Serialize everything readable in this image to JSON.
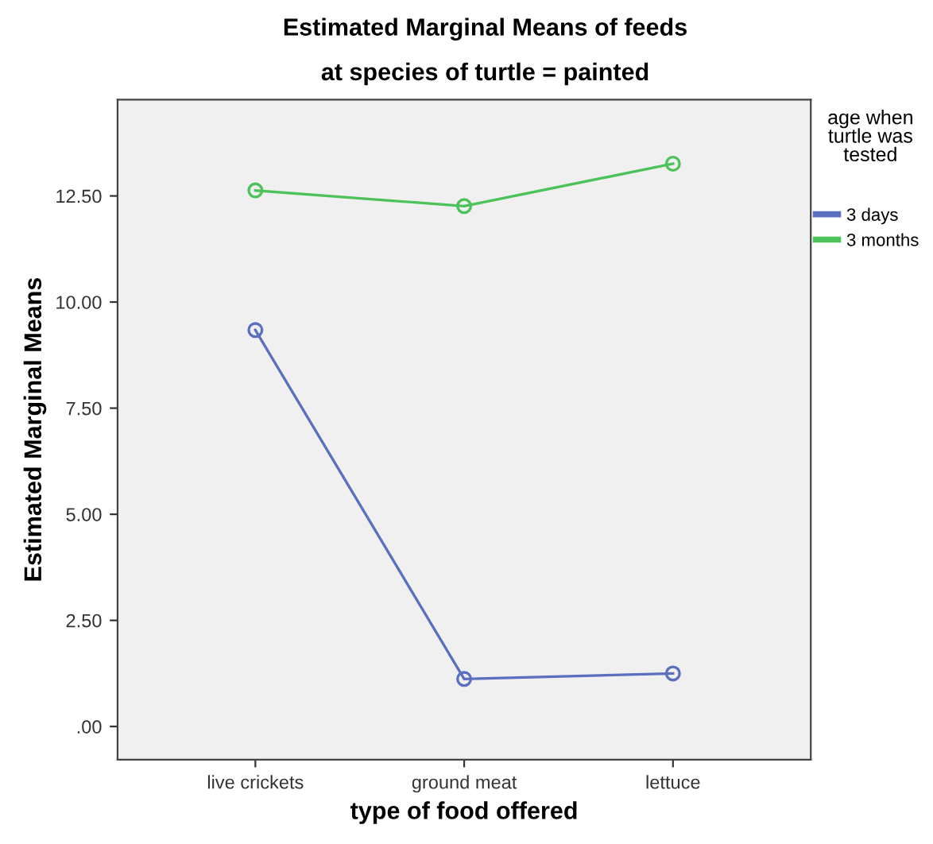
{
  "chart_data": {
    "type": "line",
    "title": "Estimated Marginal Means of feeds",
    "subtitle": "at species of turtle = painted",
    "xlabel": "type of food offered",
    "ylabel": "Estimated Marginal Means",
    "legend_title": "age when turtle was tested",
    "categories": [
      "live crickets",
      "ground meat",
      "lettuce"
    ],
    "series": [
      {
        "name": "3 days",
        "color": "#5a6fbf",
        "values": [
          9.34,
          1.12,
          1.25
        ]
      },
      {
        "name": "3 months",
        "color": "#4cc35a",
        "values": [
          12.63,
          12.26,
          13.26
        ]
      }
    ],
    "ylim": [
      -0.78,
      14.77
    ],
    "yticks": [
      {
        "value": 0,
        "label": ".00"
      },
      {
        "value": 2.5,
        "label": "2.50"
      },
      {
        "value": 5,
        "label": "5.00"
      },
      {
        "value": 7.5,
        "label": "7.50"
      },
      {
        "value": 10,
        "label": "10.00"
      },
      {
        "value": 12.5,
        "label": "12.50"
      }
    ],
    "grid": false,
    "legend": "top right",
    "marker": "circle",
    "line_style": "solid"
  }
}
